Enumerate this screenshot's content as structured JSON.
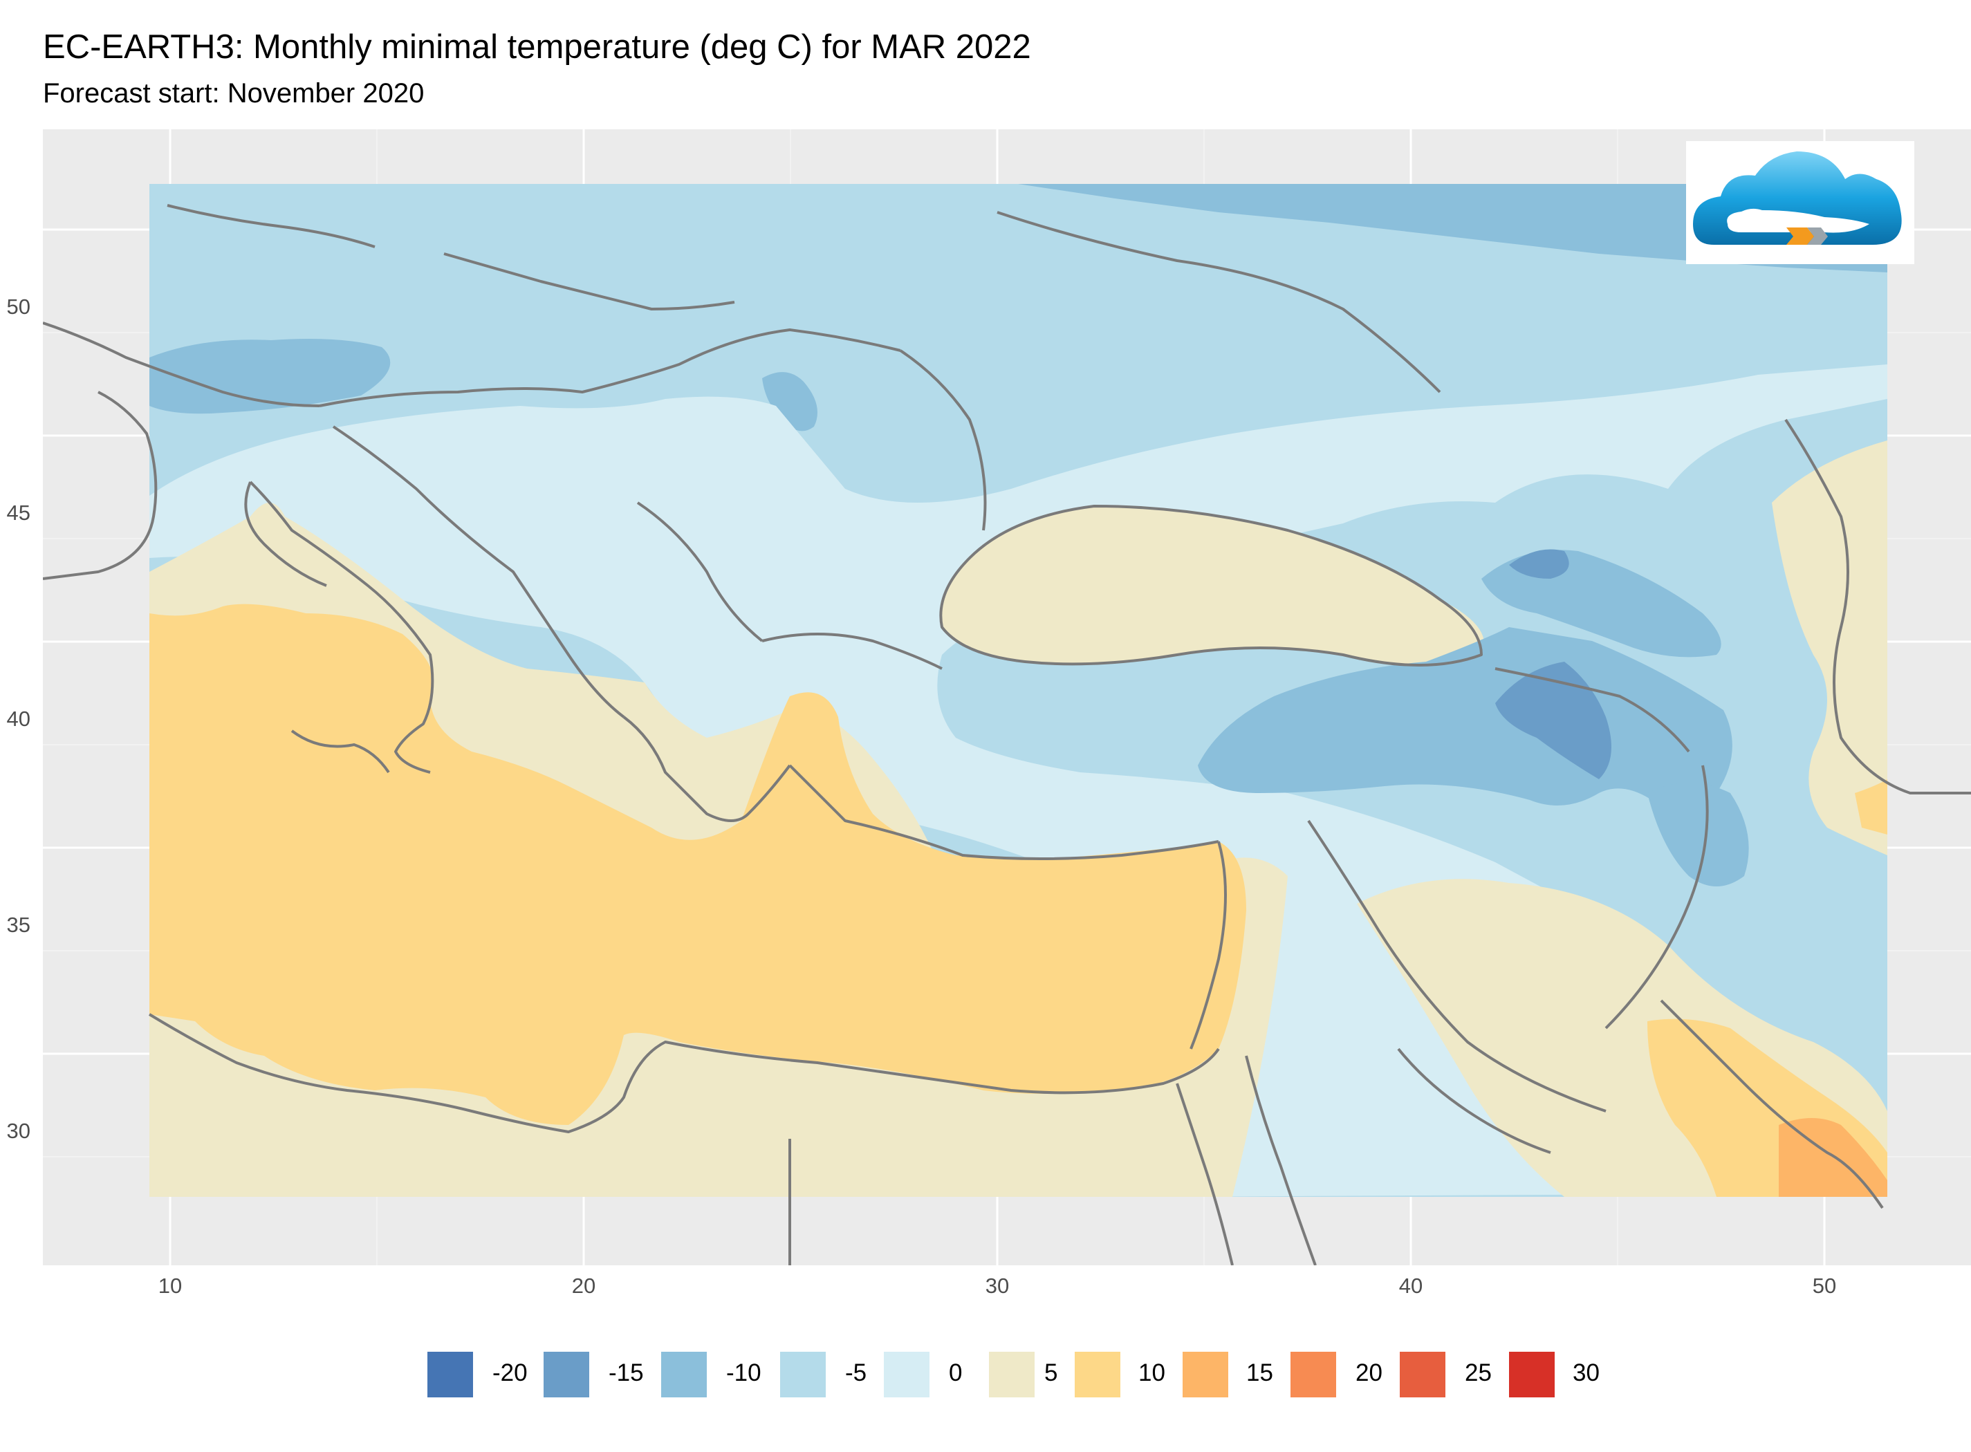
{
  "title": "EC-EARTH3: Monthly minimal temperature (deg C) for MAR 2022",
  "subtitle": "Forecast start: November 2020",
  "map": {
    "lon_range": [
      7,
      54.5
    ],
    "lat_range": [
      26.9,
      53.7
    ],
    "data_extent": {
      "lon": [
        9.5,
        51.5
      ],
      "lat": [
        28.5,
        53
      ]
    },
    "x_ticks": [
      "10",
      "20",
      "30",
      "40",
      "50"
    ],
    "y_ticks": [
      "30",
      "35",
      "40",
      "45",
      "50"
    ],
    "grid": true,
    "panel_background": "#ebebeb",
    "coastline_color": "#7a7a7a",
    "logo_icon": "cloud-logo-icon"
  },
  "legend": {
    "position": "bottom",
    "items": [
      {
        "label": "-20",
        "color": "#4575b4"
      },
      {
        "label": "-15",
        "color": "#6a9dc8"
      },
      {
        "label": "-10",
        "color": "#8bbfdb"
      },
      {
        "label": "-5",
        "color": "#b4dbea"
      },
      {
        "label": "0",
        "color": "#d6edf4"
      },
      {
        "label": "5",
        "color": "#efe9c8"
      },
      {
        "label": "10",
        "color": "#fdd888"
      },
      {
        "label": "15",
        "color": "#fdb567"
      },
      {
        "label": "20",
        "color": "#f78b52"
      },
      {
        "label": "25",
        "color": "#e75e3e"
      },
      {
        "label": "30",
        "color": "#d73027"
      }
    ]
  }
}
